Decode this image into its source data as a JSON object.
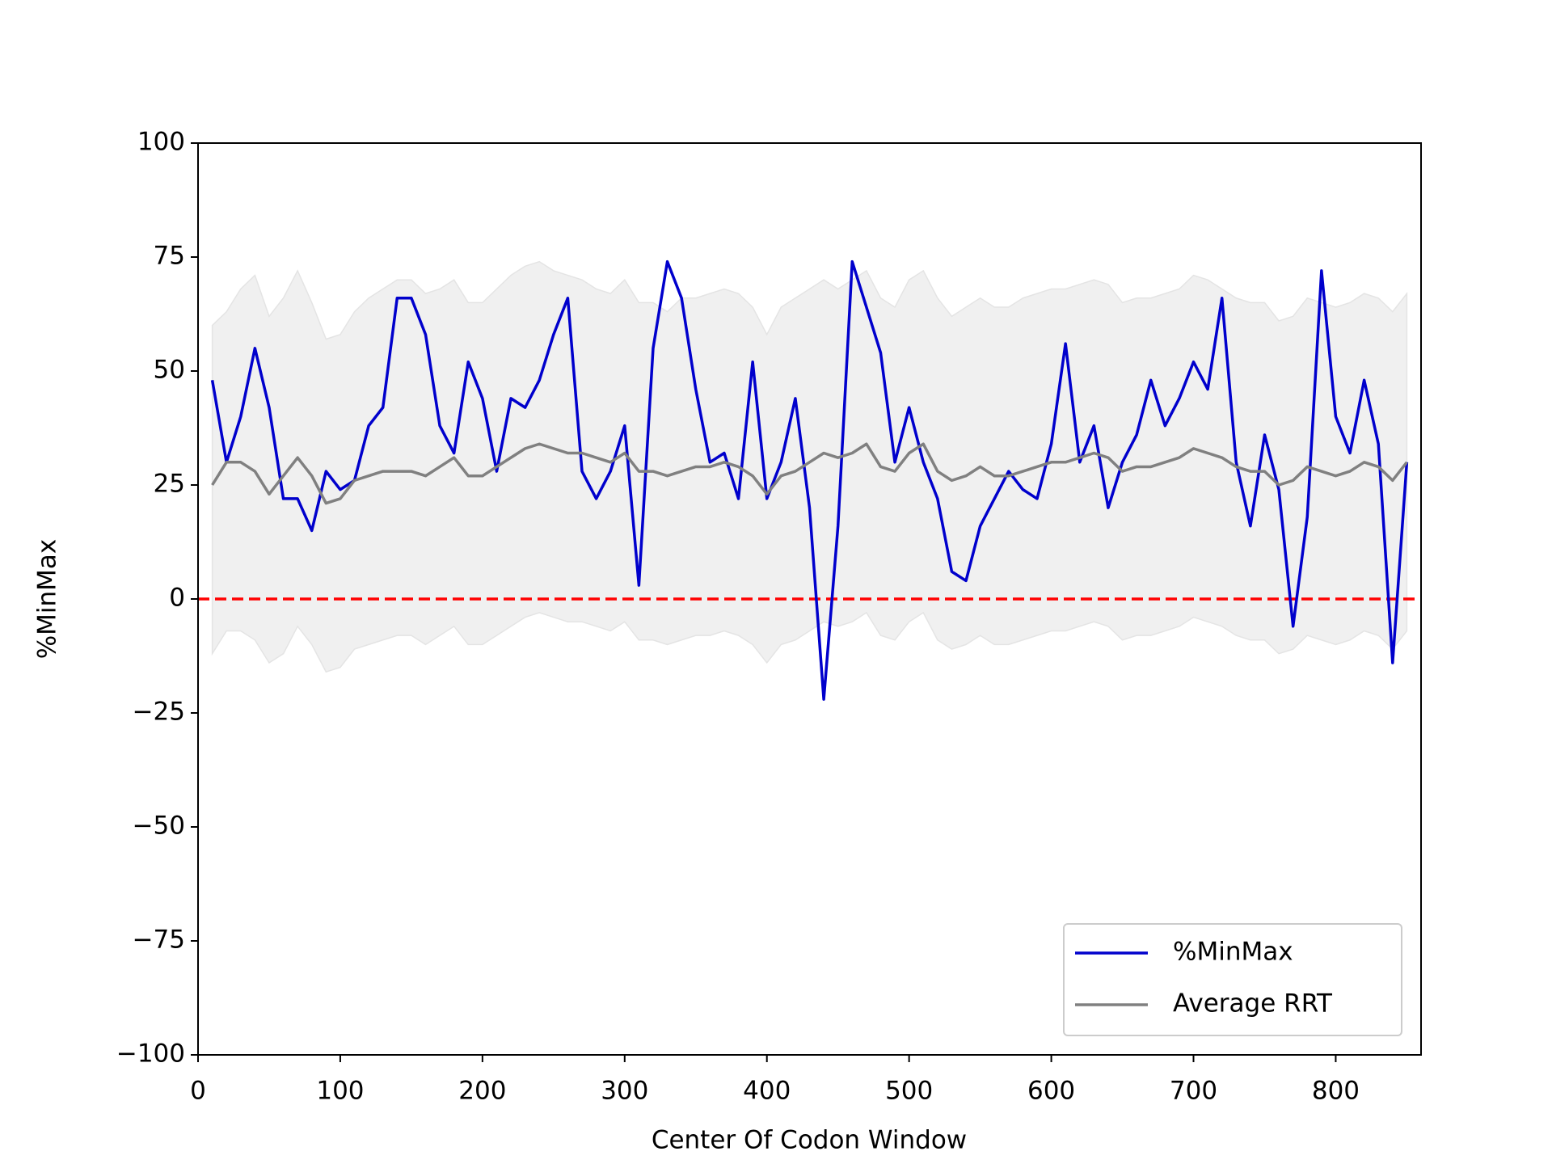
{
  "chart_data": {
    "type": "line",
    "xlabel": "Center Of Codon Window",
    "ylabel": "%MinMax",
    "x": [
      10,
      20,
      30,
      40,
      50,
      60,
      70,
      80,
      90,
      100,
      110,
      120,
      130,
      140,
      150,
      160,
      170,
      180,
      190,
      200,
      210,
      220,
      230,
      240,
      250,
      260,
      270,
      280,
      290,
      300,
      310,
      320,
      330,
      340,
      350,
      360,
      370,
      380,
      390,
      400,
      410,
      420,
      430,
      440,
      450,
      460,
      470,
      480,
      490,
      500,
      510,
      520,
      530,
      540,
      550,
      560,
      570,
      580,
      590,
      600,
      610,
      620,
      630,
      640,
      650,
      660,
      670,
      680,
      690,
      700,
      710,
      720,
      730,
      740,
      750,
      760,
      770,
      780,
      790,
      800,
      810,
      820,
      830,
      840,
      850
    ],
    "series": [
      {
        "name": "%MinMax",
        "color": "#0000cc",
        "values": [
          48,
          30,
          40,
          55,
          42,
          22,
          22,
          15,
          28,
          24,
          26,
          38,
          42,
          66,
          66,
          58,
          38,
          32,
          52,
          44,
          28,
          44,
          42,
          48,
          58,
          66,
          28,
          22,
          28,
          38,
          3,
          55,
          74,
          66,
          46,
          30,
          32,
          22,
          52,
          22,
          30,
          44,
          20,
          -22,
          16,
          74,
          64,
          54,
          30,
          42,
          30,
          22,
          6,
          4,
          16,
          22,
          28,
          24,
          22,
          34,
          56,
          30,
          38,
          20,
          30,
          36,
          48,
          38,
          44,
          52,
          46,
          66,
          30,
          16,
          36,
          24,
          -6,
          18,
          72,
          40,
          32,
          48,
          34,
          -14,
          30
        ]
      },
      {
        "name": "Average RRT",
        "color": "#808080",
        "values": [
          25,
          30,
          30,
          28,
          23,
          27,
          31,
          27,
          21,
          22,
          26,
          27,
          28,
          28,
          28,
          27,
          29,
          31,
          27,
          27,
          29,
          31,
          33,
          34,
          33,
          32,
          32,
          31,
          30,
          32,
          28,
          28,
          27,
          28,
          29,
          29,
          30,
          29,
          27,
          23,
          27,
          28,
          30,
          32,
          31,
          32,
          34,
          29,
          28,
          32,
          34,
          28,
          26,
          27,
          29,
          27,
          27,
          28,
          29,
          30,
          30,
          31,
          32,
          31,
          28,
          29,
          29,
          30,
          31,
          33,
          32,
          31,
          29,
          28,
          28,
          25,
          26,
          29,
          28,
          27,
          28,
          30,
          29,
          26,
          30
        ]
      }
    ],
    "band": {
      "color": "#f0f0f0",
      "upper": [
        60,
        63,
        68,
        71,
        62,
        66,
        72,
        65,
        57,
        58,
        63,
        66,
        68,
        70,
        70,
        67,
        68,
        70,
        65,
        65,
        68,
        71,
        73,
        74,
        72,
        71,
        70,
        68,
        67,
        70,
        65,
        65,
        63,
        66,
        66,
        67,
        68,
        67,
        64,
        58,
        64,
        66,
        68,
        70,
        68,
        70,
        72,
        66,
        64,
        70,
        72,
        66,
        62,
        64,
        66,
        64,
        64,
        66,
        67,
        68,
        68,
        69,
        70,
        69,
        65,
        66,
        66,
        67,
        68,
        71,
        70,
        68,
        66,
        65,
        65,
        61,
        62,
        66,
        65,
        64,
        65,
        67,
        66,
        63,
        67
      ],
      "lower": [
        -12,
        -7,
        -7,
        -9,
        -14,
        -12,
        -6,
        -10,
        -16,
        -15,
        -11,
        -10,
        -9,
        -8,
        -8,
        -10,
        -8,
        -6,
        -10,
        -10,
        -8,
        -6,
        -4,
        -3,
        -4,
        -5,
        -5,
        -6,
        -7,
        -5,
        -9,
        -9,
        -10,
        -9,
        -8,
        -8,
        -7,
        -8,
        -10,
        -14,
        -10,
        -9,
        -7,
        -5,
        -6,
        -5,
        -3,
        -8,
        -9,
        -5,
        -3,
        -9,
        -11,
        -10,
        -8,
        -10,
        -10,
        -9,
        -8,
        -7,
        -7,
        -6,
        -5,
        -6,
        -9,
        -8,
        -8,
        -7,
        -6,
        -4,
        -5,
        -6,
        -8,
        -9,
        -9,
        -12,
        -11,
        -8,
        -9,
        -10,
        -9,
        -7,
        -8,
        -11,
        -7
      ]
    },
    "hline": {
      "y": 0,
      "color": "#ff0000"
    },
    "xlim": [
      0,
      860
    ],
    "ylim": [
      -100,
      100
    ],
    "xticks": [
      0,
      100,
      200,
      300,
      400,
      500,
      600,
      700,
      800
    ],
    "yticks": [
      {
        "value": -100,
        "label": "−100"
      },
      {
        "value": -75,
        "label": "−75"
      },
      {
        "value": -50,
        "label": "−50"
      },
      {
        "value": -25,
        "label": "−25"
      },
      0,
      25,
      50,
      75,
      100
    ],
    "legend": "lower right"
  }
}
